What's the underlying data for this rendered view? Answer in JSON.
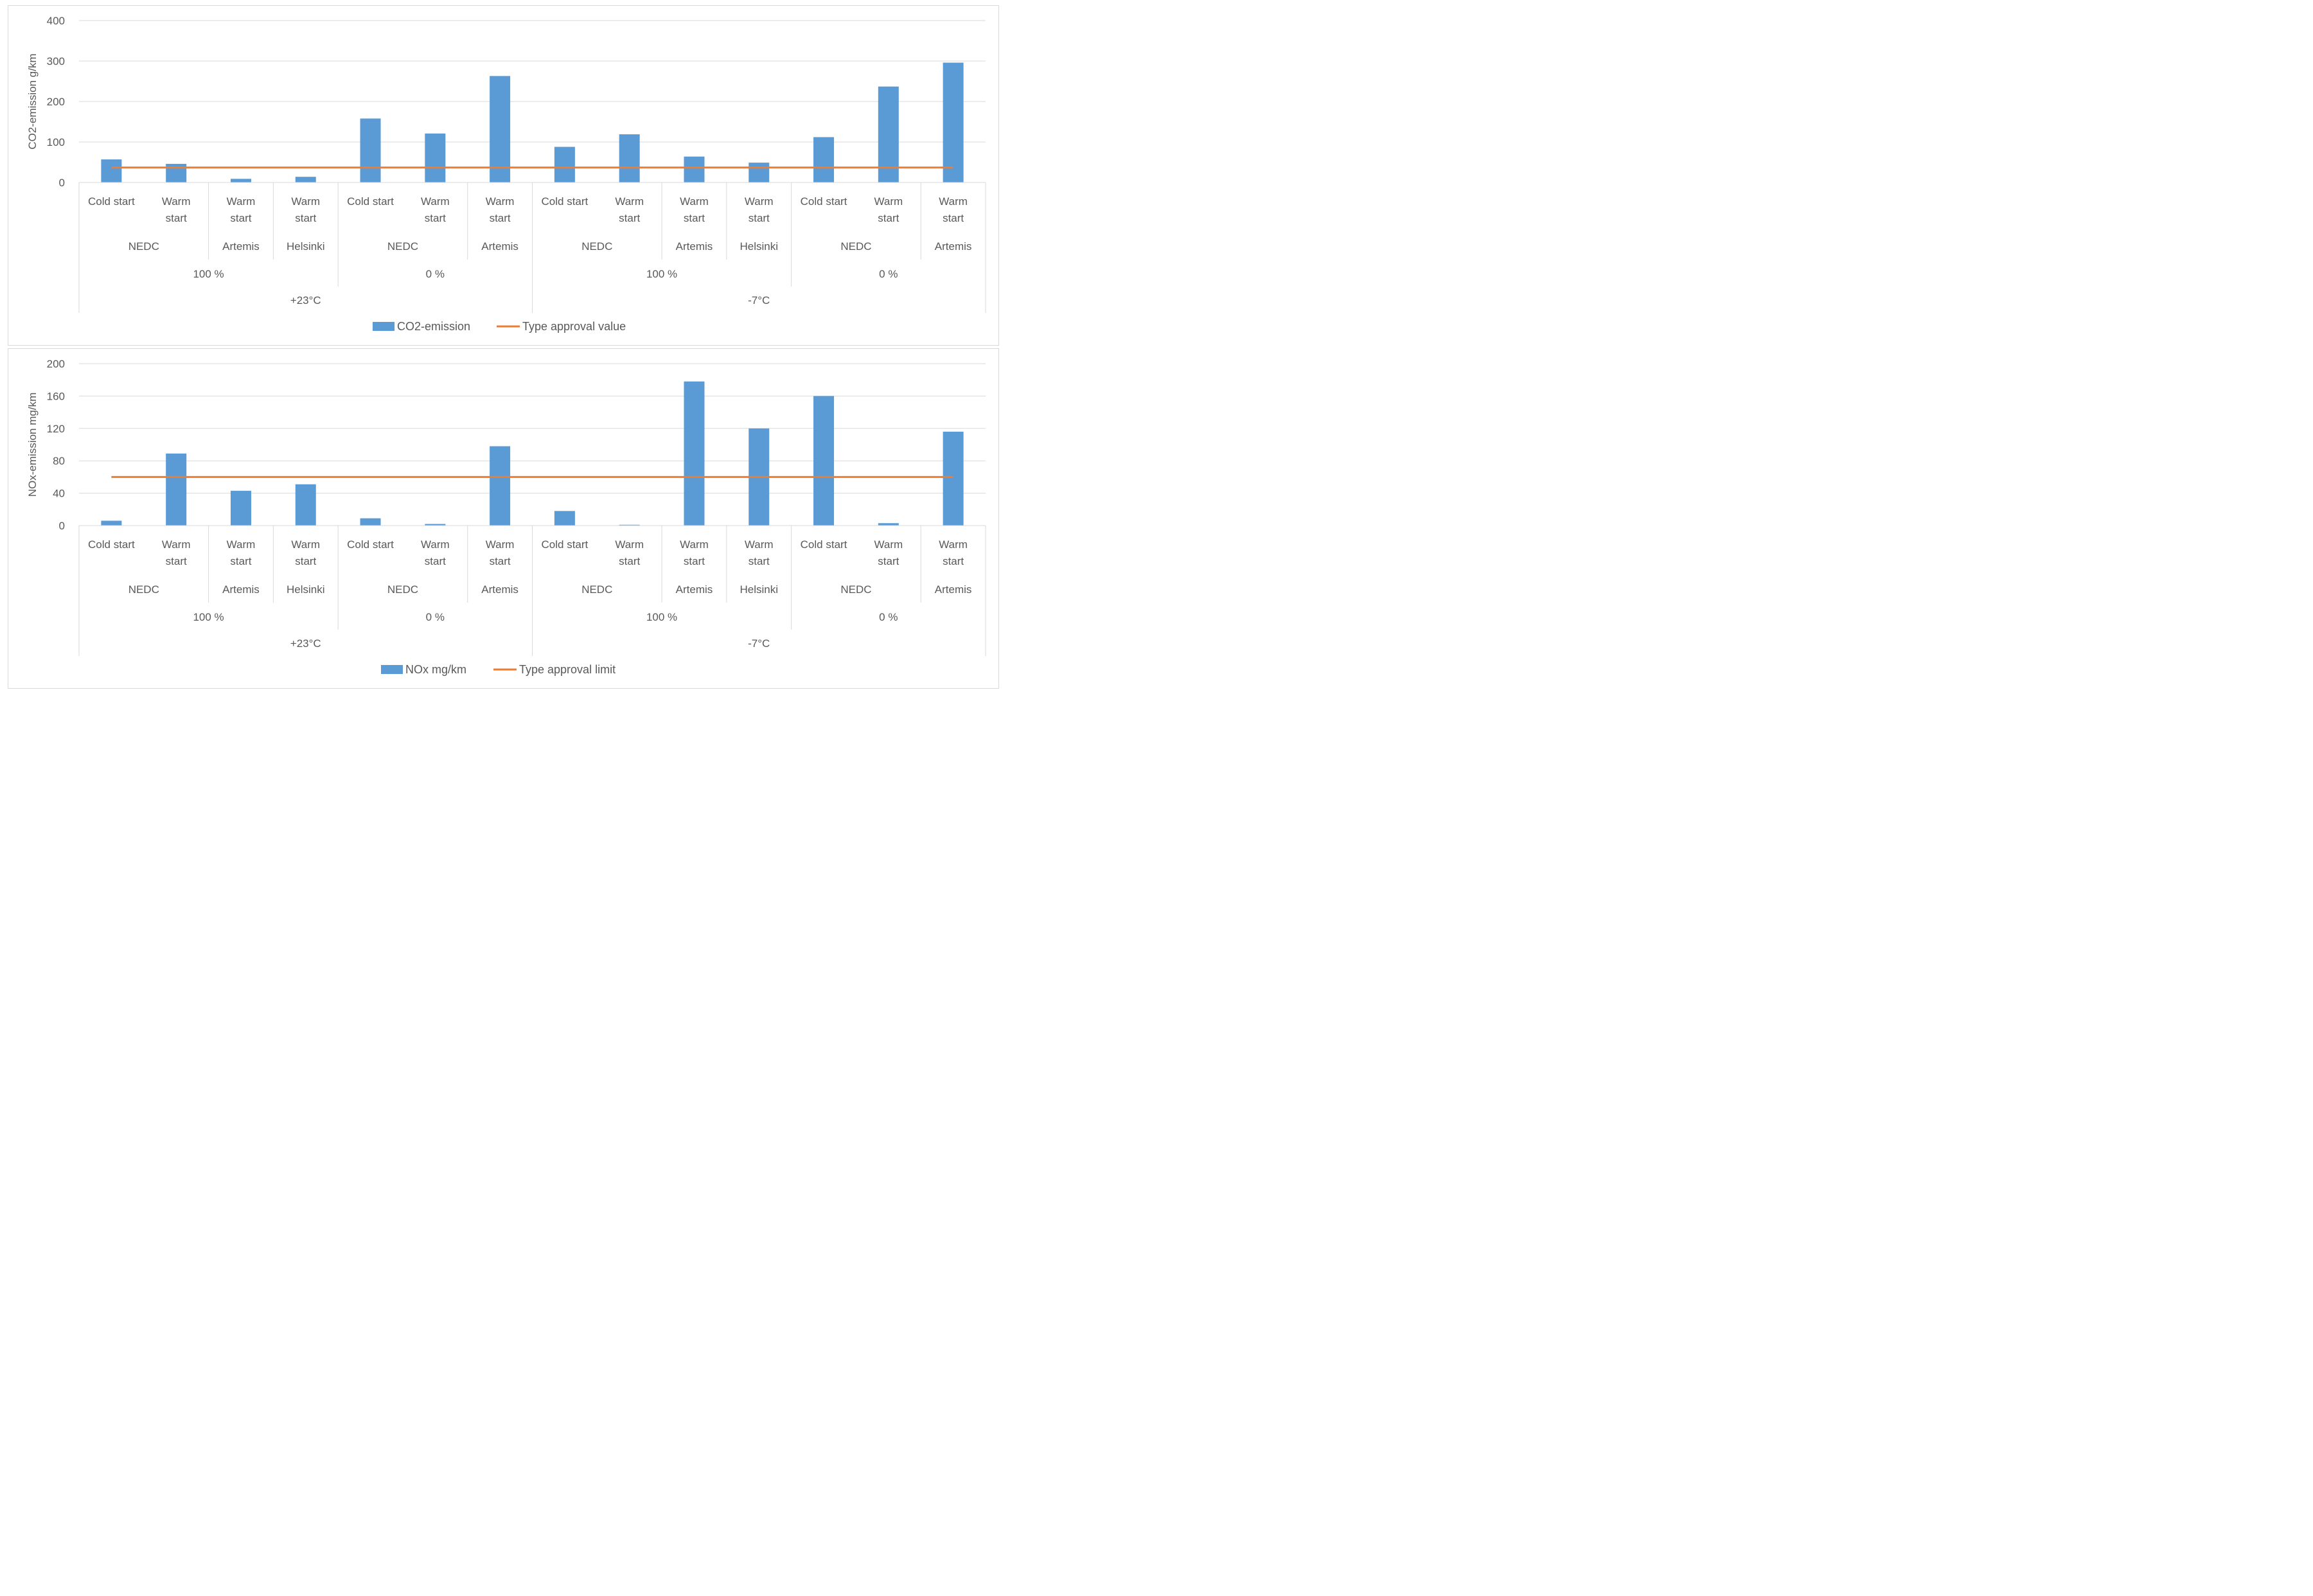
{
  "colors": {
    "bar": "#5b9bd5",
    "line": "#ed7d31",
    "grid": "#d9d9d9",
    "axis_text": "#595959"
  },
  "chart_data": [
    {
      "type": "bar",
      "ylabel": "CO2-emission g/km",
      "ylim": [
        0,
        400
      ],
      "yticks": [
        0,
        100,
        200,
        300,
        400
      ],
      "categories": [
        "Cold start",
        "Warm start",
        "Warm start",
        "Warm start",
        "Cold start",
        "Warm start",
        "Warm start",
        "Cold start",
        "Warm start",
        "Warm start",
        "Warm start",
        "Cold start",
        "Warm start",
        "Warm start"
      ],
      "cycles": [
        {
          "label": "NEDC",
          "span": 2
        },
        {
          "label": "Artemis",
          "span": 1
        },
        {
          "label": "Helsinki",
          "span": 1
        },
        {
          "label": "NEDC",
          "span": 2
        },
        {
          "label": "Artemis",
          "span": 1
        },
        {
          "label": "NEDC",
          "span": 2
        },
        {
          "label": "Artemis",
          "span": 1
        },
        {
          "label": "Helsinki",
          "span": 1
        },
        {
          "label": "NEDC",
          "span": 2
        },
        {
          "label": "Artemis",
          "span": 1
        }
      ],
      "charge_levels": [
        {
          "label": "100 %",
          "span": 4
        },
        {
          "label": "0 %",
          "span": 3
        },
        {
          "label": "100 %",
          "span": 4
        },
        {
          "label": "0 %",
          "span": 3
        }
      ],
      "temperatures": [
        {
          "label": "+23°C",
          "span": 7
        },
        {
          "label": "-7°C",
          "span": 7
        }
      ],
      "series": [
        {
          "name": "CO2-emission",
          "type": "bar",
          "values": [
            57,
            46,
            9,
            14,
            158,
            121,
            263,
            88,
            119,
            64,
            49,
            112,
            237,
            296
          ]
        },
        {
          "name": "Type approval value",
          "type": "line",
          "value": 37
        }
      ],
      "legend": "bottom"
    },
    {
      "type": "bar",
      "ylabel": "NOx-emission mg/km",
      "ylim": [
        0,
        200
      ],
      "yticks": [
        0,
        40,
        80,
        120,
        160,
        200
      ],
      "categories": [
        "Cold start",
        "Warm start",
        "Warm start",
        "Warm start",
        "Cold start",
        "Warm start",
        "Warm start",
        "Cold start",
        "Warm start",
        "Warm start",
        "Warm start",
        "Cold start",
        "Warm start",
        "Warm start"
      ],
      "cycles": [
        {
          "label": "NEDC",
          "span": 2
        },
        {
          "label": "Artemis",
          "span": 1
        },
        {
          "label": "Helsinki",
          "span": 1
        },
        {
          "label": "NEDC",
          "span": 2
        },
        {
          "label": "Artemis",
          "span": 1
        },
        {
          "label": "NEDC",
          "span": 2
        },
        {
          "label": "Artemis",
          "span": 1
        },
        {
          "label": "Helsinki",
          "span": 1
        },
        {
          "label": "NEDC",
          "span": 2
        },
        {
          "label": "Artemis",
          "span": 1
        }
      ],
      "charge_levels": [
        {
          "label": "100 %",
          "span": 4
        },
        {
          "label": "0 %",
          "span": 3
        },
        {
          "label": "100 %",
          "span": 4
        },
        {
          "label": "0 %",
          "span": 3
        }
      ],
      "temperatures": [
        {
          "label": "+23°C",
          "span": 7
        },
        {
          "label": "-7°C",
          "span": 7
        }
      ],
      "series": [
        {
          "name": "NOx mg/km",
          "type": "bar",
          "values": [
            6,
            89,
            43,
            51,
            9,
            2,
            98,
            18,
            1,
            178,
            120,
            160,
            3,
            116
          ]
        },
        {
          "name": "Type approval limit",
          "type": "line",
          "value": 60
        }
      ],
      "legend": "bottom"
    }
  ]
}
